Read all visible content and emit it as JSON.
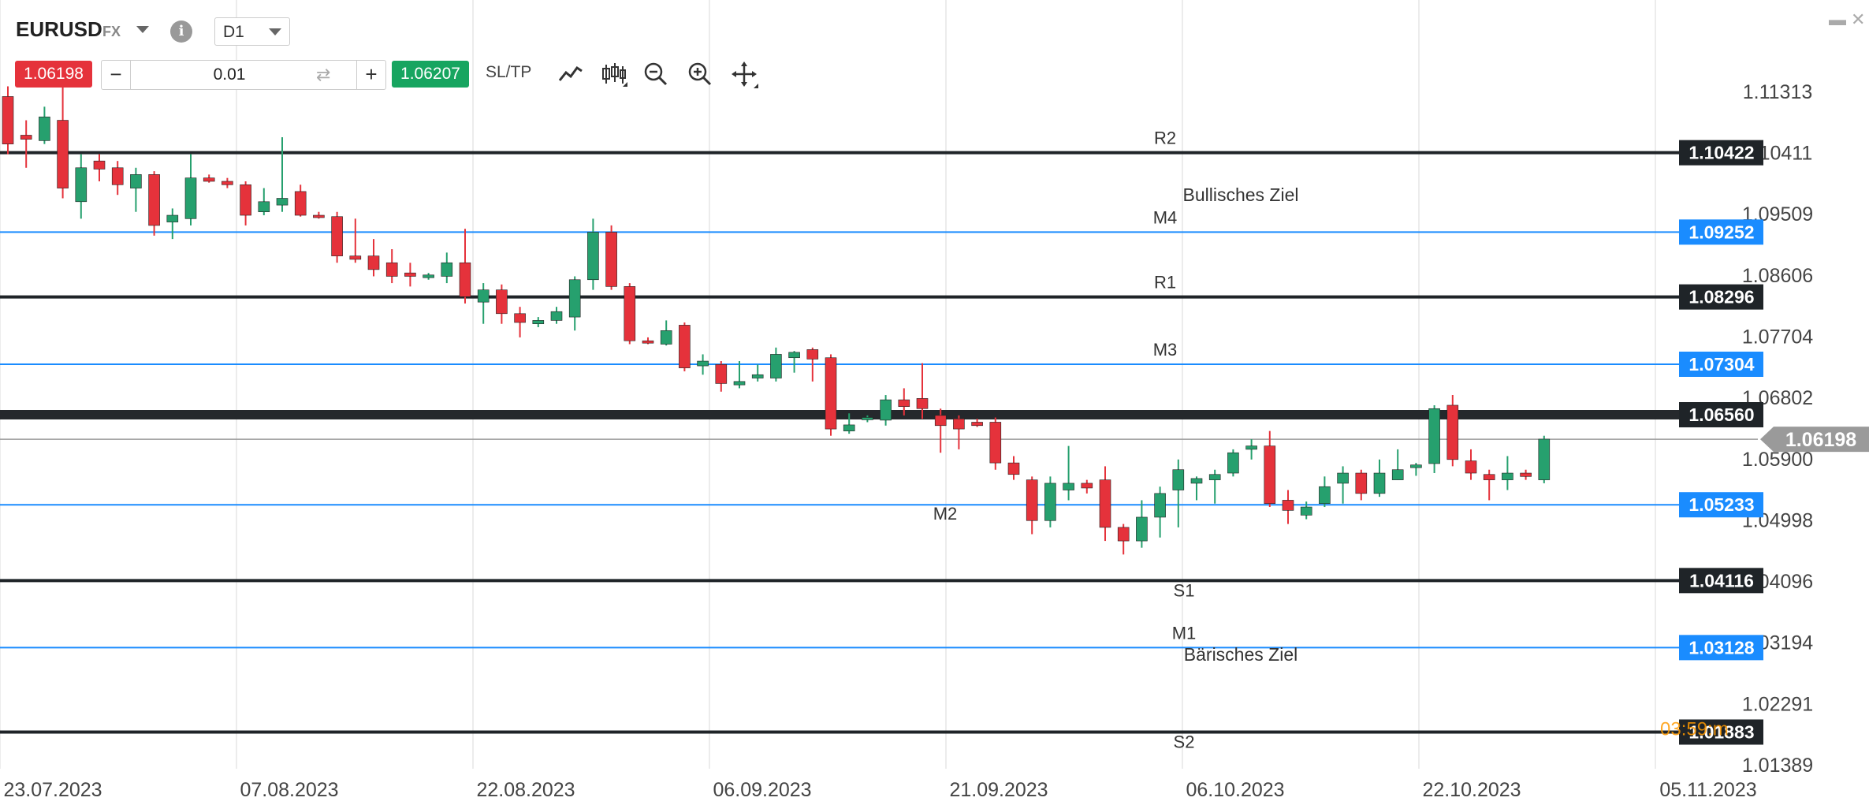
{
  "header": {
    "symbol": "EURUSD",
    "market": "FX",
    "timeframe": "D1",
    "sell_price": "1.06198",
    "buy_price": "1.06207",
    "quantity": "0.01",
    "sltp_label": "SL/TP",
    "minus_label": "−",
    "plus_label": "+",
    "info_label": "i"
  },
  "colors": {
    "bull": "#26a06e",
    "bear": "#e5323b",
    "level_black": "#1f2428",
    "level_blue": "#1a8cff",
    "grid": "#e6e6e6",
    "countdown": "#ff9900"
  },
  "chart_data": {
    "type": "candlestick",
    "symbol": "EURUSD",
    "timeframe": "D1",
    "ylim": [
      1.0112,
      1.116
    ],
    "y_ticks": [
      "1.11313",
      "1.10411",
      "1.09509",
      "1.08606",
      "1.07704",
      "1.06802",
      "1.05900",
      "1.04998",
      "1.04096",
      "1.03194",
      "1.02291",
      "1.01389"
    ],
    "x_ticks": [
      "23.07.2023",
      "07.08.2023",
      "22.08.2023",
      "06.09.2023",
      "21.09.2023",
      "06.10.2023",
      "22.10.2023",
      "05.11.2023"
    ],
    "current_price": "1.06198",
    "levels": [
      {
        "name": "R2",
        "value": 1.10422,
        "label": "1.10422",
        "style": "black"
      },
      {
        "name": "M4",
        "value": 1.09252,
        "label": "1.09252",
        "style": "blue"
      },
      {
        "name": "R1",
        "value": 1.08296,
        "label": "1.08296",
        "style": "black"
      },
      {
        "name": "M3",
        "value": 1.07304,
        "label": "1.07304",
        "style": "blue"
      },
      {
        "name": "",
        "value": 1.0656,
        "label": "1.06560",
        "style": "pivot"
      },
      {
        "name": "M2",
        "value": 1.05233,
        "label": "1.05233",
        "style": "blue"
      },
      {
        "name": "S1",
        "value": 1.04116,
        "label": "1.04116",
        "style": "black"
      },
      {
        "name": "M1",
        "value": 1.03128,
        "label": "1.03128",
        "style": "blue"
      },
      {
        "name": "S2",
        "value": 1.01883,
        "label": "1.01883",
        "style": "black"
      }
    ],
    "annotations": [
      "Bullisches Ziel",
      "Bärisches Ziel"
    ],
    "countdown": "03:59:m",
    "candles": [
      {
        "date": "21.07",
        "o": 1.1125,
        "h": 1.114,
        "l": 1.104,
        "c": 1.1055
      },
      {
        "date": "24.07",
        "o": 1.1068,
        "h": 1.109,
        "l": 1.102,
        "c": 1.1062
      },
      {
        "date": "25.07",
        "o": 1.106,
        "h": 1.111,
        "l": 1.1055,
        "c": 1.1095
      },
      {
        "date": "26.07",
        "o": 1.109,
        "h": 1.1145,
        "l": 1.0975,
        "c": 1.099
      },
      {
        "date": "27.07",
        "o": 1.097,
        "h": 1.104,
        "l": 1.0945,
        "c": 1.102
      },
      {
        "date": "28.07",
        "o": 1.103,
        "h": 1.104,
        "l": 1.1,
        "c": 1.1018
      },
      {
        "date": "31.07",
        "o": 1.102,
        "h": 1.103,
        "l": 1.098,
        "c": 1.0995
      },
      {
        "date": "01.08",
        "o": 1.099,
        "h": 1.102,
        "l": 1.0955,
        "c": 1.101
      },
      {
        "date": "02.08",
        "o": 1.101,
        "h": 1.1015,
        "l": 1.092,
        "c": 1.0935
      },
      {
        "date": "03.08",
        "o": 1.094,
        "h": 1.096,
        "l": 1.0915,
        "c": 1.095
      },
      {
        "date": "04.08",
        "o": 1.0945,
        "h": 1.104,
        "l": 1.0935,
        "c": 1.1005
      },
      {
        "date": "07.08",
        "o": 1.1005,
        "h": 1.101,
        "l": 1.0998,
        "c": 1.1
      },
      {
        "date": "08.08",
        "o": 1.1,
        "h": 1.1005,
        "l": 1.099,
        "c": 1.0995
      },
      {
        "date": "09.08",
        "o": 1.0995,
        "h": 1.1,
        "l": 1.0935,
        "c": 1.095
      },
      {
        "date": "10.08",
        "o": 1.0955,
        "h": 1.099,
        "l": 1.095,
        "c": 1.097
      },
      {
        "date": "11.08",
        "o": 1.0965,
        "h": 1.1065,
        "l": 1.0955,
        "c": 1.0975
      },
      {
        "date": "14.08",
        "o": 1.0985,
        "h": 1.0995,
        "l": 1.0948,
        "c": 1.095
      },
      {
        "date": "15.08",
        "o": 1.095,
        "h": 1.0955,
        "l": 1.0945,
        "c": 1.0948
      },
      {
        "date": "16.08",
        "o": 1.0948,
        "h": 1.0955,
        "l": 1.088,
        "c": 1.089
      },
      {
        "date": "17.08",
        "o": 1.089,
        "h": 1.0945,
        "l": 1.088,
        "c": 1.0885
      },
      {
        "date": "18.08",
        "o": 1.089,
        "h": 1.0915,
        "l": 1.086,
        "c": 1.087
      },
      {
        "date": "21.08",
        "o": 1.088,
        "h": 1.09,
        "l": 1.085,
        "c": 1.086
      },
      {
        "date": "22.08",
        "o": 1.0865,
        "h": 1.088,
        "l": 1.0845,
        "c": 1.086
      },
      {
        "date": "23.08",
        "o": 1.0858,
        "h": 1.0865,
        "l": 1.0855,
        "c": 1.0862
      },
      {
        "date": "24.08",
        "o": 1.086,
        "h": 1.0895,
        "l": 1.085,
        "c": 1.088
      },
      {
        "date": "25.08",
        "o": 1.088,
        "h": 1.093,
        "l": 1.082,
        "c": 1.083
      },
      {
        "date": "28.08",
        "o": 1.0822,
        "h": 1.085,
        "l": 1.079,
        "c": 1.084
      },
      {
        "date": "29.08",
        "o": 1.084,
        "h": 1.0848,
        "l": 1.079,
        "c": 1.0805
      },
      {
        "date": "30.08",
        "o": 1.0805,
        "h": 1.0815,
        "l": 1.077,
        "c": 1.0792
      },
      {
        "date": "31.08",
        "o": 1.079,
        "h": 1.08,
        "l": 1.0785,
        "c": 1.0795
      },
      {
        "date": "01.09",
        "o": 1.0795,
        "h": 1.0815,
        "l": 1.079,
        "c": 1.0808
      },
      {
        "date": "04.09",
        "o": 1.08,
        "h": 1.086,
        "l": 1.078,
        "c": 1.0855
      },
      {
        "date": "05.09",
        "o": 1.0855,
        "h": 1.0945,
        "l": 1.084,
        "c": 1.0925
      },
      {
        "date": "06.09",
        "o": 1.0925,
        "h": 1.0935,
        "l": 1.084,
        "c": 1.0845
      },
      {
        "date": "07.09",
        "o": 1.0845,
        "h": 1.085,
        "l": 1.076,
        "c": 1.0765
      },
      {
        "date": "08.09",
        "o": 1.0765,
        "h": 1.077,
        "l": 1.076,
        "c": 1.0762
      },
      {
        "date": "11.09",
        "o": 1.076,
        "h": 1.0795,
        "l": 1.0758,
        "c": 1.078
      },
      {
        "date": "12.09",
        "o": 1.0788,
        "h": 1.0792,
        "l": 1.072,
        "c": 1.0725
      },
      {
        "date": "13.09",
        "o": 1.0728,
        "h": 1.0745,
        "l": 1.0715,
        "c": 1.0735
      },
      {
        "date": "14.09",
        "o": 1.073,
        "h": 1.0735,
        "l": 1.069,
        "c": 1.0702
      },
      {
        "date": "15.09",
        "o": 1.07,
        "h": 1.0735,
        "l": 1.0695,
        "c": 1.0705
      },
      {
        "date": "18.09",
        "o": 1.071,
        "h": 1.073,
        "l": 1.0705,
        "c": 1.0715
      },
      {
        "date": "19.09",
        "o": 1.071,
        "h": 1.0755,
        "l": 1.0705,
        "c": 1.0745
      },
      {
        "date": "20.09",
        "o": 1.074,
        "h": 1.075,
        "l": 1.0718,
        "c": 1.0748
      },
      {
        "date": "21.09",
        "o": 1.0752,
        "h": 1.0755,
        "l": 1.0705,
        "c": 1.0738
      },
      {
        "date": "22.09",
        "o": 1.074,
        "h": 1.0745,
        "l": 1.0625,
        "c": 1.0635
      },
      {
        "date": "25.09",
        "o": 1.0632,
        "h": 1.0658,
        "l": 1.0628,
        "c": 1.0641
      },
      {
        "date": "26.09",
        "o": 1.065,
        "h": 1.0655,
        "l": 1.0645,
        "c": 1.0652
      },
      {
        "date": "27.09",
        "o": 1.0648,
        "h": 1.0685,
        "l": 1.064,
        "c": 1.0678
      },
      {
        "date": "28.09",
        "o": 1.0678,
        "h": 1.0695,
        "l": 1.0655,
        "c": 1.0668
      },
      {
        "date": "29.09",
        "o": 1.068,
        "h": 1.0732,
        "l": 1.065,
        "c": 1.0665
      },
      {
        "date": "02.10",
        "o": 1.0655,
        "h": 1.0665,
        "l": 1.06,
        "c": 1.064
      },
      {
        "date": "03.10",
        "o": 1.065,
        "h": 1.0655,
        "l": 1.0605,
        "c": 1.0635
      },
      {
        "date": "04.10",
        "o": 1.0645,
        "h": 1.065,
        "l": 1.0638,
        "c": 1.064
      },
      {
        "date": "05.10",
        "o": 1.0645,
        "h": 1.0652,
        "l": 1.0575,
        "c": 1.0585
      },
      {
        "date": "06.10",
        "o": 1.0585,
        "h": 1.0595,
        "l": 1.056,
        "c": 1.0568
      },
      {
        "date": "09.10",
        "o": 1.056,
        "h": 1.0565,
        "l": 1.048,
        "c": 1.05
      },
      {
        "date": "10.10",
        "o": 1.05,
        "h": 1.0565,
        "l": 1.049,
        "c": 1.0555
      },
      {
        "date": "11.10",
        "o": 1.0545,
        "h": 1.061,
        "l": 1.053,
        "c": 1.0555
      },
      {
        "date": "12.10",
        "o": 1.0555,
        "h": 1.056,
        "l": 1.054,
        "c": 1.0548
      },
      {
        "date": "13.10",
        "o": 1.056,
        "h": 1.058,
        "l": 1.047,
        "c": 1.049
      },
      {
        "date": "16.10",
        "o": 1.049,
        "h": 1.0495,
        "l": 1.045,
        "c": 1.047
      },
      {
        "date": "17.10",
        "o": 1.047,
        "h": 1.053,
        "l": 1.046,
        "c": 1.0505
      },
      {
        "date": "18.10",
        "o": 1.0505,
        "h": 1.055,
        "l": 1.0475,
        "c": 1.054
      },
      {
        "date": "19.10",
        "o": 1.0545,
        "h": 1.059,
        "l": 1.049,
        "c": 1.0575
      },
      {
        "date": "20.10",
        "o": 1.0555,
        "h": 1.0565,
        "l": 1.053,
        "c": 1.0562
      },
      {
        "date": "23.10",
        "o": 1.056,
        "h": 1.0575,
        "l": 1.0525,
        "c": 1.0568
      },
      {
        "date": "24.10",
        "o": 1.057,
        "h": 1.0605,
        "l": 1.0565,
        "c": 1.06
      },
      {
        "date": "25.10",
        "o": 1.0605,
        "h": 1.062,
        "l": 1.059,
        "c": 1.061
      },
      {
        "date": "26.10",
        "o": 1.061,
        "h": 1.0632,
        "l": 1.052,
        "c": 1.0525
      },
      {
        "date": "27.10",
        "o": 1.053,
        "h": 1.0545,
        "l": 1.0495,
        "c": 1.0515
      },
      {
        "date": "30.10",
        "o": 1.0508,
        "h": 1.0528,
        "l": 1.0502,
        "c": 1.052
      },
      {
        "date": "31.10",
        "o": 1.0525,
        "h": 1.0565,
        "l": 1.052,
        "c": 1.055
      },
      {
        "date": "01.11",
        "o": 1.0555,
        "h": 1.058,
        "l": 1.0525,
        "c": 1.057
      },
      {
        "date": "02.11",
        "o": 1.057,
        "h": 1.0575,
        "l": 1.053,
        "c": 1.054
      },
      {
        "date": "03.11",
        "o": 1.054,
        "h": 1.059,
        "l": 1.0535,
        "c": 1.057
      },
      {
        "date": "06.11",
        "o": 1.056,
        "h": 1.0605,
        "l": 1.056,
        "c": 1.0575
      },
      {
        "date": "07.11",
        "o": 1.0578,
        "h": 1.0585,
        "l": 1.0566,
        "c": 1.0582
      },
      {
        "date": "08.11",
        "o": 1.0584,
        "h": 1.067,
        "l": 1.057,
        "c": 1.0665
      },
      {
        "date": "09.11",
        "o": 1.067,
        "h": 1.0685,
        "l": 1.058,
        "c": 1.059
      },
      {
        "date": "10.11",
        "o": 1.0588,
        "h": 1.0605,
        "l": 1.056,
        "c": 1.057
      },
      {
        "date": "13.11",
        "o": 1.0568,
        "h": 1.0575,
        "l": 1.053,
        "c": 1.056
      },
      {
        "date": "14.11",
        "o": 1.056,
        "h": 1.0595,
        "l": 1.0545,
        "c": 1.057
      },
      {
        "date": "15.11",
        "o": 1.057,
        "h": 1.0575,
        "l": 1.056,
        "c": 1.0565
      },
      {
        "date": "16.11",
        "o": 1.056,
        "h": 1.0625,
        "l": 1.0555,
        "c": 1.062
      }
    ]
  }
}
